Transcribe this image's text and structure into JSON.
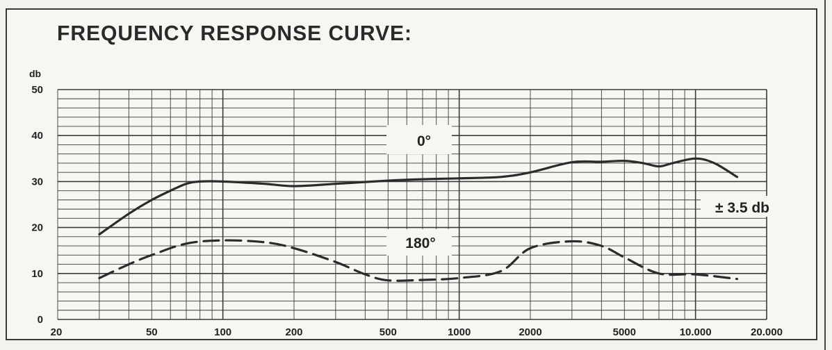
{
  "title": "FREQUENCY RESPONSE CURVE:",
  "chart_data": {
    "type": "line",
    "title": "FREQUENCY RESPONSE CURVE:",
    "xlabel": "",
    "ylabel": "db",
    "xscale": "log",
    "xlim": [
      20,
      20000
    ],
    "ylim": [
      0,
      50
    ],
    "grid": true,
    "x_tick_labels": [
      "20",
      "50",
      "100",
      "200",
      "500",
      "1000",
      "2000",
      "5000",
      "10.000",
      "20.000"
    ],
    "x_tick_values": [
      20,
      50,
      100,
      200,
      500,
      1000,
      2000,
      5000,
      10000,
      20000
    ],
    "y_tick_labels": [
      "0",
      "10",
      "20",
      "30",
      "40",
      "50"
    ],
    "y_tick_values": [
      0,
      10,
      20,
      30,
      40,
      50
    ],
    "series": [
      {
        "name": "0°",
        "style": "solid",
        "x": [
          30,
          40,
          50,
          60,
          70,
          80,
          100,
          150,
          200,
          300,
          500,
          700,
          1000,
          1500,
          2000,
          3000,
          4000,
          5000,
          6000,
          7000,
          8000,
          10000,
          12000,
          15000
        ],
        "y": [
          18.5,
          23,
          26,
          28,
          29.5,
          30,
          30,
          29.5,
          29,
          29.5,
          30.2,
          30.5,
          30.7,
          31,
          32,
          34.2,
          34.3,
          34.5,
          34,
          33.3,
          34,
          35,
          34,
          31
        ]
      },
      {
        "name": "180°",
        "style": "dashed",
        "x": [
          30,
          40,
          50,
          70,
          100,
          150,
          200,
          300,
          400,
          500,
          700,
          1000,
          1500,
          2000,
          3000,
          4000,
          5000,
          7000,
          10000,
          15000
        ],
        "y": [
          9,
          12,
          14,
          16.5,
          17.2,
          16.8,
          15.5,
          12.5,
          9.8,
          8.5,
          8.6,
          9,
          10.5,
          15.5,
          17,
          16,
          13.5,
          10,
          9.8,
          8.8
        ]
      }
    ],
    "annotations": [
      {
        "text": "0°",
        "target": "0°"
      },
      {
        "text": "180°",
        "target": "180°"
      },
      {
        "text": "± 3.5 db",
        "target": "0°"
      }
    ],
    "colors": {
      "line": "#2b2b2b",
      "grid": "#3a3a3a",
      "background": "#f7f6f2"
    }
  }
}
